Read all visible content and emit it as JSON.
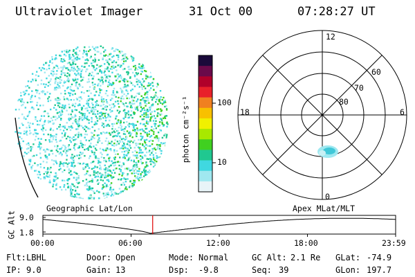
{
  "header": {
    "instrument": "Ultraviolet Imager",
    "date": "31 Oct 00",
    "time": "07:28:27 UT"
  },
  "colorbar": {
    "unit_label": "photon cm⁻²s⁻¹",
    "ticks": [
      {
        "label": "100",
        "value": 100
      },
      {
        "label": "10",
        "value": 10
      }
    ],
    "colors_top_to_bottom": [
      "#1a0a3a",
      "#6a0a4a",
      "#b0002a",
      "#e8202a",
      "#f08020",
      "#f8c000",
      "#f0f000",
      "#a8e800",
      "#40d020",
      "#20c890",
      "#40d8e0",
      "#a0e8f0",
      "#e8f4f8"
    ]
  },
  "polar_plot": {
    "mlt_labels": [
      "12",
      "18",
      "6",
      "0"
    ],
    "lat_labels": [
      "60",
      "70",
      "80"
    ]
  },
  "timeline": {
    "left_title": "Geographic Lat/Lon",
    "right_title": "Apex MLat/MLT",
    "ylabel": "GC Alt",
    "y_ticks": [
      "9.0",
      "1.8"
    ],
    "x_ticks": [
      "00:00",
      "06:00",
      "12:00",
      "18:00",
      "23:59"
    ],
    "current_time_hours": 7.47,
    "marker_color": "#e00000"
  },
  "info": {
    "row1": [
      {
        "label": "Flt:",
        "value": "LBHL"
      },
      {
        "label": "Door:",
        "value": "Open"
      },
      {
        "label": "Mode:",
        "value": "Normal"
      },
      {
        "label": "GC Alt:",
        "value": "2.1 Re"
      },
      {
        "label": "GLat:",
        "value": "-74.9"
      }
    ],
    "row2": [
      {
        "label": "IP:",
        "value": "9.0"
      },
      {
        "label": "Gain:",
        "value": "13"
      },
      {
        "label": "Dsp:",
        "value": "-9.8"
      },
      {
        "label": "Seq:",
        "value": "39"
      },
      {
        "label": "GLon:",
        "value": "197.7"
      }
    ]
  }
}
